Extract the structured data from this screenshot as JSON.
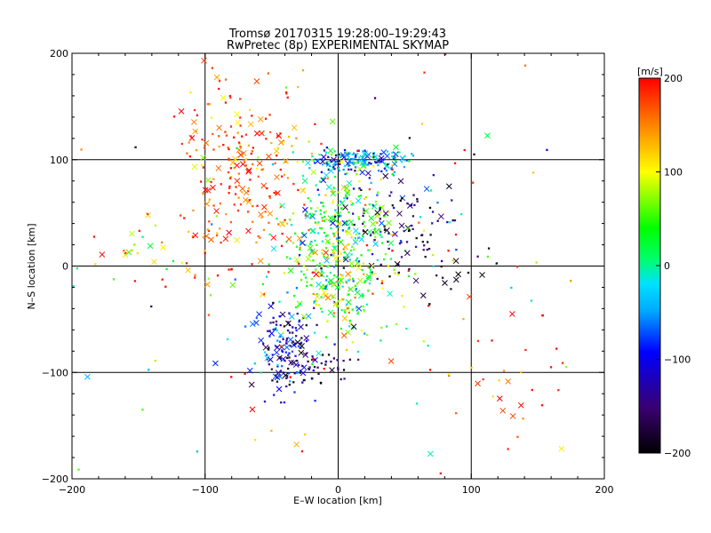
{
  "chart_data": {
    "type": "scatter",
    "title": "Tromsø 20170315 19:28:00–19:29:43",
    "subtitle": "RwPretec (8p) EXPERIMENTAL SKYMAP",
    "xlabel": "E–W location [km]",
    "ylabel": "N–S location [km]",
    "xlim": [
      -200,
      200
    ],
    "ylim": [
      -200,
      200
    ],
    "xticks": [
      -200,
      -100,
      0,
      100,
      200
    ],
    "yticks": [
      -200,
      -100,
      0,
      100,
      200
    ],
    "x_tick_labels": [
      "−200",
      "−100",
      "0",
      "100",
      "200"
    ],
    "y_tick_labels": [
      "−200",
      "−100",
      "0",
      "100",
      "200"
    ],
    "gridlines_x": [
      -100,
      0,
      100
    ],
    "gridlines_y": [
      -100,
      0,
      100
    ],
    "colorbar": {
      "label": "[m/s]",
      "range": [
        -200,
        200
      ],
      "ticks": [
        200,
        100,
        0,
        -100,
        -200
      ],
      "tick_labels": [
        "200",
        "100",
        "0",
        "−100",
        "−200"
      ],
      "colors": [
        "#000000",
        "#3a0070",
        "#0000ff",
        "#00e0ff",
        "#00ff00",
        "#ffff00",
        "#ff0000"
      ]
    },
    "markers": "x (velocity-coloured crosses and dots)",
    "clusters": [
      {
        "center": [
          0,
          30
        ],
        "spread": [
          22,
          40
        ],
        "count": 380,
        "v_mean": 40,
        "v_sd": 60
      },
      {
        "center": [
          8,
          98
        ],
        "spread": [
          14,
          6
        ],
        "count": 110,
        "v_mean": -80,
        "v_sd": 50
      },
      {
        "center": [
          40,
          100
        ],
        "spread": [
          12,
          6
        ],
        "count": 40,
        "v_mean": -40,
        "v_sd": 40
      },
      {
        "center": [
          -70,
          90
        ],
        "spread": [
          25,
          45
        ],
        "count": 230,
        "v_mean": 170,
        "v_sd": 35
      },
      {
        "center": [
          -40,
          -75
        ],
        "spread": [
          12,
          20
        ],
        "count": 140,
        "v_mean": -110,
        "v_sd": 55
      },
      {
        "center": [
          -20,
          -95
        ],
        "spread": [
          14,
          10
        ],
        "count": 45,
        "v_mean": -170,
        "v_sd": 35
      },
      {
        "center": [
          50,
          40
        ],
        "spread": [
          25,
          30
        ],
        "count": 110,
        "v_mean": -160,
        "v_sd": 45
      },
      {
        "center": [
          0,
          -30
        ],
        "spread": [
          15,
          25
        ],
        "count": 80,
        "v_mean": 60,
        "v_sd": 70
      },
      {
        "center": [
          -140,
          10
        ],
        "spread": [
          35,
          15
        ],
        "count": 40,
        "v_mean": 120,
        "v_sd": 110
      },
      {
        "center": [
          130,
          -110
        ],
        "spread": [
          35,
          35
        ],
        "count": 30,
        "v_mean": 180,
        "v_sd": 40
      },
      {
        "center": [
          0,
          0
        ],
        "spread": [
          110,
          110
        ],
        "count": 140,
        "v_mean": 80,
        "v_sd": 130
      },
      {
        "center": [
          80,
          0
        ],
        "spread": [
          20,
          12
        ],
        "count": 12,
        "v_mean": -190,
        "v_sd": 20
      }
    ]
  }
}
